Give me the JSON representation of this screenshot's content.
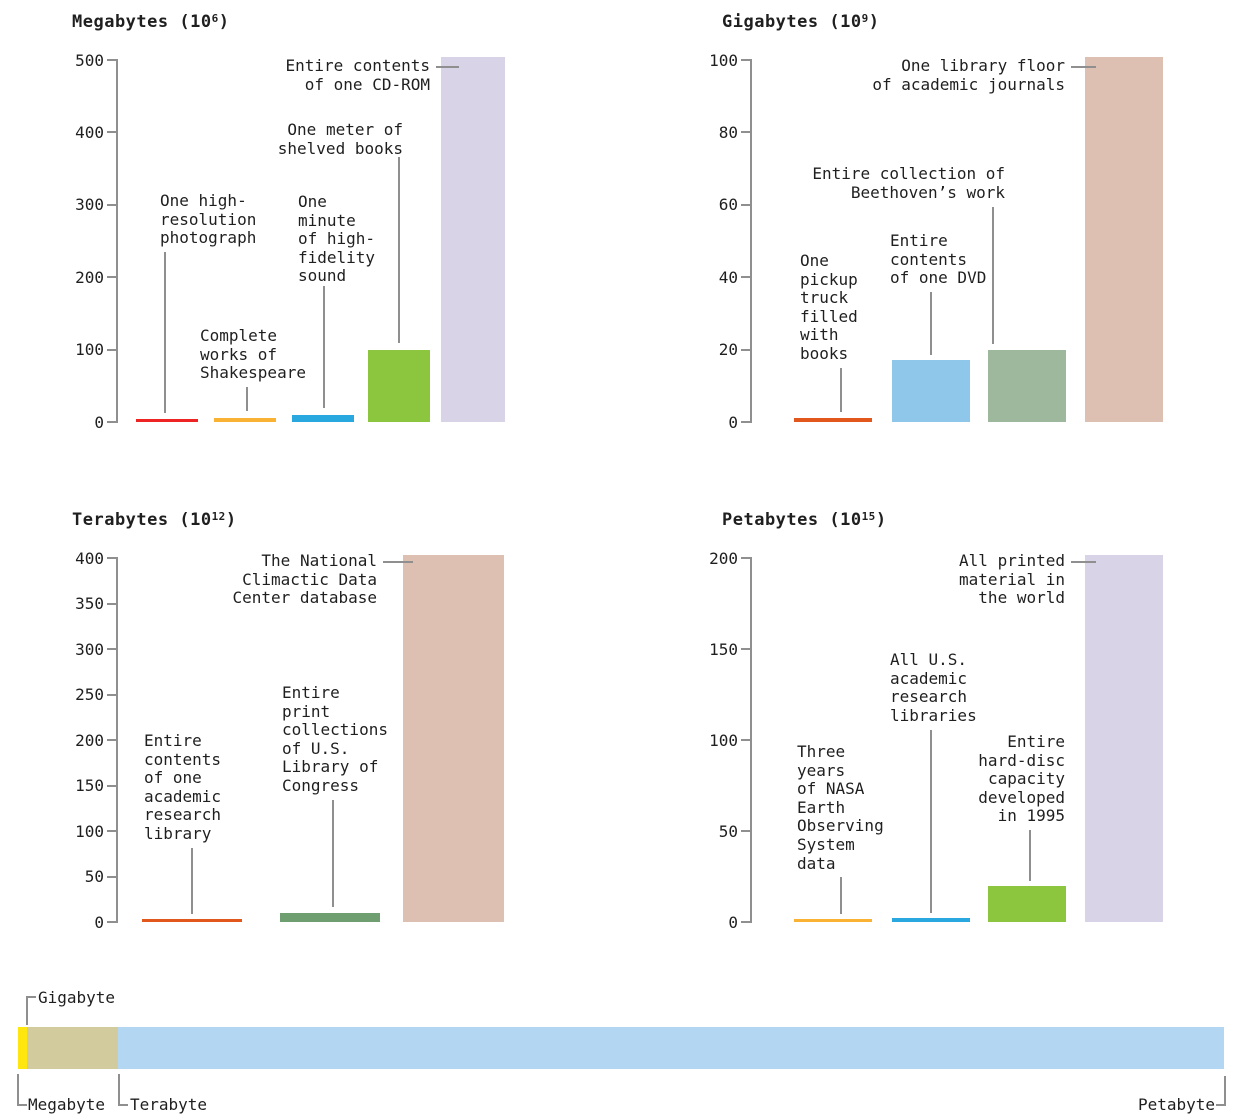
{
  "colors": {
    "text": "#1f1f1f",
    "line": "#8f8f8f",
    "background": "#ffffff"
  },
  "chart_data": [
    {
      "type": "bar",
      "title_prefix": "Megabytes (10",
      "title_power": "6",
      "title_suffix": ")",
      "unit": "megabytes",
      "ylim": [
        0,
        500
      ],
      "yticks": [
        0,
        100,
        200,
        300,
        400,
        500
      ],
      "grid": false,
      "bars": [
        {
          "label": "One high-resolution photograph",
          "label_lines": [
            "One high-",
            "resolution",
            "photograph"
          ],
          "value": 2,
          "color": "#ee2424"
        },
        {
          "label": "Complete works of Shakespeare",
          "label_lines": [
            "Complete",
            "works of",
            "Shakespeare"
          ],
          "value": 5,
          "color": "#f9b233"
        },
        {
          "label": "One minute of high-fidelity sound",
          "label_lines": [
            "One",
            "minute",
            "of high-",
            "fidelity",
            "sound"
          ],
          "value": 10,
          "color": "#29a8e0"
        },
        {
          "label": "One meter of shelved books",
          "label_lines": [
            "One meter of",
            "shelved books"
          ],
          "value": 100,
          "color": "#8cc63f"
        },
        {
          "label": "Entire contents of one CD-ROM",
          "label_lines": [
            "Entire contents",
            "of one CD-ROM"
          ],
          "value": 500,
          "color": "#d8d3e7"
        }
      ]
    },
    {
      "type": "bar",
      "title_prefix": "Gigabytes (10",
      "title_power": "9",
      "title_suffix": ")",
      "unit": "gigabytes",
      "ylim": [
        0,
        100
      ],
      "yticks": [
        0,
        20,
        40,
        60,
        80,
        100
      ],
      "grid": false,
      "bars": [
        {
          "label": "One pickup truck filled with books",
          "label_lines": [
            "One",
            "pickup",
            "truck",
            "filled",
            "with",
            "books"
          ],
          "value": 1,
          "color": "#e2571c"
        },
        {
          "label": "Entire contents of one DVD",
          "label_lines": [
            "Entire",
            "contents",
            "of one DVD"
          ],
          "value": 17,
          "color": "#8fc7ea"
        },
        {
          "label": "Entire collection of Beethoven’s work",
          "label_lines": [
            "Entire collection of",
            "Beethoven’s work"
          ],
          "value": 20,
          "color": "#9db89c"
        },
        {
          "label": "One library floor of academic journals",
          "label_lines": [
            "One library floor",
            "of academic journals"
          ],
          "value": 100,
          "color": "#ddc0b1"
        }
      ]
    },
    {
      "type": "bar",
      "title_prefix": "Terabytes (10",
      "title_power": "12",
      "title_suffix": ")",
      "unit": "terabytes",
      "ylim": [
        0,
        400
      ],
      "yticks": [
        0,
        50,
        100,
        150,
        200,
        250,
        300,
        350,
        400
      ],
      "grid": false,
      "bars": [
        {
          "label": "Entire contents of one academic research library",
          "label_lines": [
            "Entire",
            "contents",
            "of one",
            "academic",
            "research",
            "library"
          ],
          "value": 2,
          "color": "#e2571c"
        },
        {
          "label": "Entire print collections of U.S. Library of Congress",
          "label_lines": [
            "Entire",
            "print",
            "collections",
            "of U.S.",
            "Library of",
            "Congress"
          ],
          "value": 10,
          "color": "#6f9e71"
        },
        {
          "label": "The National Climactic Data Center database",
          "label_lines": [
            "The National",
            "Climactic Data",
            "Center database"
          ],
          "value": 400,
          "color": "#ddc0b1"
        }
      ]
    },
    {
      "type": "bar",
      "title_prefix": "Petabytes (10",
      "title_power": "15",
      "title_suffix": ")",
      "unit": "petabytes",
      "ylim": [
        0,
        200
      ],
      "yticks": [
        0,
        50,
        100,
        150,
        200
      ],
      "grid": false,
      "bars": [
        {
          "label": "Three years of NASA Earth Observing System data",
          "label_lines": [
            "Three",
            "years",
            "of NASA",
            "Earth",
            "Observing",
            "System",
            "data"
          ],
          "value": 1,
          "color": "#f9b233"
        },
        {
          "label": "All U.S. academic research libraries",
          "label_lines": [
            "All U.S.",
            "academic",
            "research",
            "libraries"
          ],
          "value": 2,
          "color": "#29a8e0"
        },
        {
          "label": "Entire hard-disc capacity developed in 1995",
          "label_lines": [
            "Entire",
            "hard-disc",
            "capacity",
            "developed",
            "in 1995"
          ],
          "value": 20,
          "color": "#8cc63f"
        },
        {
          "label": "All printed material in the world",
          "label_lines": [
            "All printed",
            "material in",
            "the world"
          ],
          "value": 200,
          "color": "#d8d3e7"
        }
      ]
    }
  ],
  "scale_bar": {
    "segments": [
      {
        "from": "Megabyte",
        "to": "Gigabyte",
        "color": "#ffe60f"
      },
      {
        "from": "Gigabyte",
        "to": "Terabyte",
        "color": "#d1cb9e"
      },
      {
        "from": "Terabyte",
        "to": "Petabyte",
        "color": "#b3d7f2"
      }
    ],
    "labels": [
      {
        "text": "Gigabyte",
        "position": "top"
      },
      {
        "text": "Megabyte",
        "position": "bottom"
      },
      {
        "text": "Terabyte",
        "position": "bottom"
      },
      {
        "text": "Petabyte",
        "position": "bottom-right"
      }
    ]
  }
}
